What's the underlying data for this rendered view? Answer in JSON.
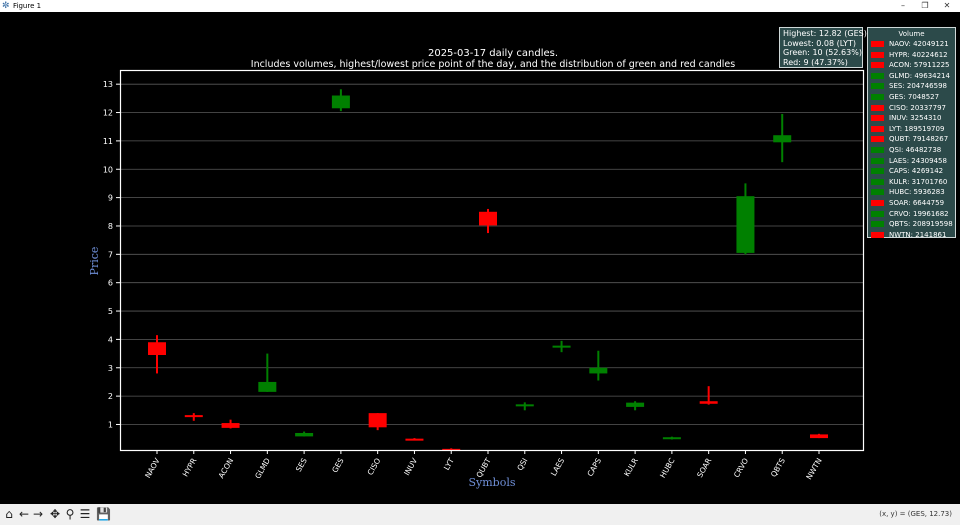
{
  "window": {
    "title": "Figure 1",
    "icon": "matplotlib-icon",
    "controls": [
      "minimize-icon",
      "maximize-icon",
      "close-icon"
    ]
  },
  "toolbar": {
    "buttons": [
      "home-icon",
      "back-icon",
      "forward-icon",
      "pan-icon",
      "zoom-icon",
      "configure-icon",
      "save-icon"
    ],
    "coords": "(x, y) = (GES, 12.73)"
  },
  "infobox": {
    "highest": "Highest: 12.82 (GES)",
    "lowest": "Lowest: 0.08 (LYT)",
    "green": "Green: 10 (52.63%)",
    "red": "Red: 9 (47.37%)"
  },
  "legend": {
    "title": "Volume",
    "entries": [
      {
        "label": "NAOV: 42049121",
        "color": "#ff0000"
      },
      {
        "label": "HYPR: 40224612",
        "color": "#ff0000"
      },
      {
        "label": "ACON: 57911225",
        "color": "#ff0000"
      },
      {
        "label": "GLMD: 49634214",
        "color": "#008000"
      },
      {
        "label": "SES: 204746598",
        "color": "#008000"
      },
      {
        "label": "GES: 7048527",
        "color": "#008000"
      },
      {
        "label": "CISO: 20337797",
        "color": "#ff0000"
      },
      {
        "label": "INUV: 3254310",
        "color": "#ff0000"
      },
      {
        "label": "LYT: 189519709",
        "color": "#ff0000"
      },
      {
        "label": "QUBT: 79148267",
        "color": "#ff0000"
      },
      {
        "label": "QSI: 46482738",
        "color": "#008000"
      },
      {
        "label": "LAES: 24309458",
        "color": "#008000"
      },
      {
        "label": "CAPS: 4269142",
        "color": "#008000"
      },
      {
        "label": "KULR: 31701760",
        "color": "#008000"
      },
      {
        "label": "HUBC: 5936283",
        "color": "#008000"
      },
      {
        "label": "SOAR: 6644759",
        "color": "#ff0000"
      },
      {
        "label": "CRVO: 19961682",
        "color": "#008000"
      },
      {
        "label": "QBTS: 208919598",
        "color": "#008000"
      },
      {
        "label": "NWTN: 2141861",
        "color": "#ff0000"
      }
    ]
  },
  "chart_data": {
    "type": "candlestick",
    "title": "2025-03-17 daily candles.",
    "subtitle": "Includes volumes, highest/lowest price point of the day, and the distribution of green and red candles",
    "xlabel": "Symbols",
    "ylabel": "Price",
    "ylim": [
      0.1,
      13.5
    ],
    "yticks": [
      1,
      2,
      3,
      4,
      5,
      6,
      7,
      8,
      9,
      10,
      11,
      12,
      13
    ],
    "grid": true,
    "legend_position": "right",
    "colors": {
      "up": "#008000",
      "down": "#ff0000",
      "background": "#000000",
      "axes": "#ffffff",
      "label": "#6f8fd8"
    },
    "candles": [
      {
        "symbol": "NAOV",
        "open": 3.9,
        "close": 3.45,
        "high": 4.15,
        "low": 2.8
      },
      {
        "symbol": "HYPR",
        "open": 1.33,
        "close": 1.27,
        "high": 1.4,
        "low": 1.13
      },
      {
        "symbol": "ACON",
        "open": 1.05,
        "close": 0.88,
        "high": 1.17,
        "low": 0.86
      },
      {
        "symbol": "GLMD",
        "open": 2.15,
        "close": 2.5,
        "high": 3.5,
        "low": 2.15
      },
      {
        "symbol": "SES",
        "open": 0.58,
        "close": 0.7,
        "high": 0.75,
        "low": 0.58
      },
      {
        "symbol": "GES",
        "open": 12.15,
        "close": 12.6,
        "high": 12.82,
        "low": 12.05
      },
      {
        "symbol": "CISO",
        "open": 1.4,
        "close": 0.9,
        "high": 1.4,
        "low": 0.8
      },
      {
        "symbol": "INUV",
        "open": 0.5,
        "close": 0.47,
        "high": 0.52,
        "low": 0.45
      },
      {
        "symbol": "LYT",
        "open": 0.14,
        "close": 0.1,
        "high": 0.16,
        "low": 0.08
      },
      {
        "symbol": "QUBT",
        "open": 8.5,
        "close": 8.02,
        "high": 8.6,
        "low": 7.75
      },
      {
        "symbol": "QSI",
        "open": 1.66,
        "close": 1.71,
        "high": 1.78,
        "low": 1.5
      },
      {
        "symbol": "LAES",
        "open": 3.73,
        "close": 3.78,
        "high": 3.95,
        "low": 3.55
      },
      {
        "symbol": "CAPS",
        "open": 2.8,
        "close": 3.0,
        "high": 3.6,
        "low": 2.55
      },
      {
        "symbol": "KULR",
        "open": 1.62,
        "close": 1.77,
        "high": 1.82,
        "low": 1.5
      },
      {
        "symbol": "HUBC",
        "open": 0.48,
        "close": 0.55,
        "high": 0.57,
        "low": 0.47
      },
      {
        "symbol": "SOAR",
        "open": 1.82,
        "close": 1.73,
        "high": 2.35,
        "low": 1.7
      },
      {
        "symbol": "CRVO",
        "open": 7.05,
        "close": 9.05,
        "high": 9.5,
        "low": 7.0
      },
      {
        "symbol": "QBTS",
        "open": 10.95,
        "close": 11.2,
        "high": 11.95,
        "low": 10.25
      },
      {
        "symbol": "NWTN",
        "open": 0.65,
        "close": 0.52,
        "high": 0.67,
        "low": 0.52
      }
    ]
  }
}
